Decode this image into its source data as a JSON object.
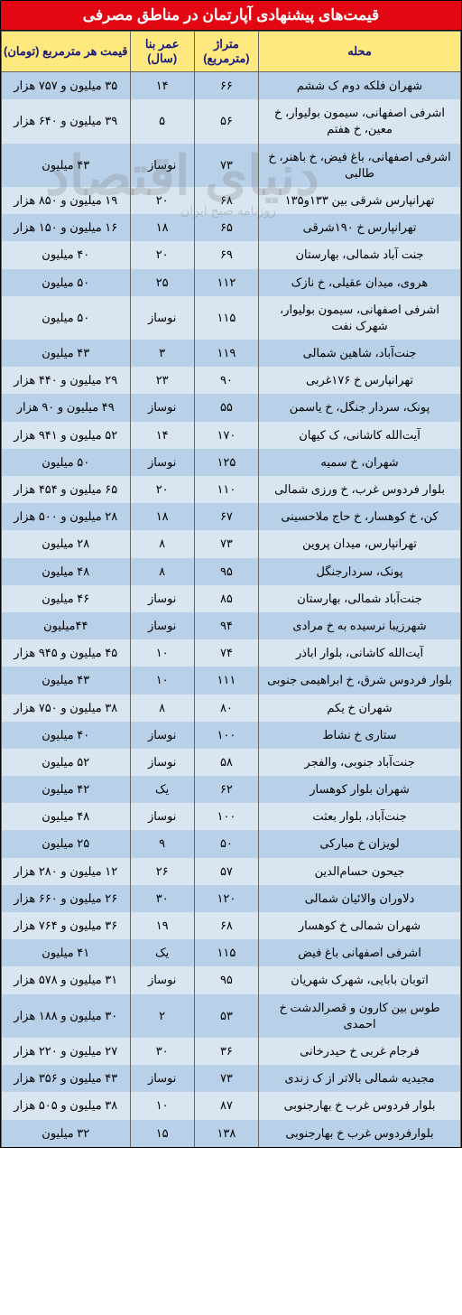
{
  "title": "قیمت‌های پیشنهادی آپارتمان در مناطق مصرفی",
  "watermark": "دنیای اقتصاد",
  "watermark_sub": "روزنامه صبح ایران",
  "headers": {
    "location": "محله",
    "area": "متراژ (مترمربع)",
    "age": "عمر بنا (سال)",
    "price": "قیمت هر مترمربع (تومان)"
  },
  "style": {
    "title_bg": "#e30613",
    "title_color": "#ffffff",
    "header_bg": "#ffe97f",
    "header_color": "#1a1a7a",
    "row_odd_bg": "#b8d0e8",
    "row_even_bg": "#d9e6f2",
    "border_color": "#666666",
    "font_size_body": 13,
    "font_size_title": 17
  },
  "rows": [
    {
      "loc": "شهران فلکه دوم ک ششم",
      "area": "۶۶",
      "age": "۱۴",
      "price": "۳۵ میلیون و ۷۵۷ هزار"
    },
    {
      "loc": "اشرفی اصفهانی، سیمون بولیوار، خ معین، خ هفتم",
      "area": "۵۶",
      "age": "۵",
      "price": "۳۹ میلیون و ۶۴۰ هزار"
    },
    {
      "loc": "اشرفی اصفهانی، باغ فیض، خ باهنر، خ طالبی",
      "area": "۷۳",
      "age": "نوساز",
      "price": "۴۳ میلیون"
    },
    {
      "loc": "تهرانپارس شرقی بین ۱۳۳و۱۳۵",
      "area": "۶۸",
      "age": "۲۰",
      "price": "۱۹ میلیون و ۸۵۰ هزار"
    },
    {
      "loc": "تهرانپارس خ ۱۹۰شرقی",
      "area": "۶۵",
      "age": "۱۸",
      "price": "۱۶ میلیون و ۱۵۰ هزار"
    },
    {
      "loc": "جنت آباد شمالی، بهارستان",
      "area": "۶۹",
      "age": "۲۰",
      "price": "۴۰ میلیون"
    },
    {
      "loc": "هروی، میدان عقیلی، خ نازک",
      "area": "۱۱۲",
      "age": "۲۵",
      "price": "۵۰ میلیون"
    },
    {
      "loc": "اشرفی اصفهانی، سیمون بولیوار، شهرک نفت",
      "area": "۱۱۵",
      "age": "نوساز",
      "price": "۵۰ میلیون"
    },
    {
      "loc": "جنت‌آباد، شاهین شمالی",
      "area": "۱۱۹",
      "age": "۳",
      "price": "۴۳ میلیون"
    },
    {
      "loc": "تهرانپارس خ ۱۷۶غربی",
      "area": "۹۰",
      "age": "۲۳",
      "price": "۲۹ میلیون و ۴۴۰ هزار"
    },
    {
      "loc": "پونک، سردار جنگل، خ یاسمن",
      "area": "۵۵",
      "age": "نوساز",
      "price": "۴۹ میلیون و ۹۰ هزار"
    },
    {
      "loc": "آیت‌الله کاشانی، ک کیهان",
      "area": "۱۷۰",
      "age": "۱۴",
      "price": "۵۲ میلیون و ۹۴۱ هزار"
    },
    {
      "loc": "شهران، خ سمیه",
      "area": "۱۲۵",
      "age": "نوساز",
      "price": "۵۰ میلیون"
    },
    {
      "loc": "بلوار فردوس غرب، خ ورزی شمالی",
      "area": "۱۱۰",
      "age": "۲۰",
      "price": "۶۵ میلیون و ۴۵۴ هزار"
    },
    {
      "loc": "کن، خ کوهسار، خ حاج ملاحسینی",
      "area": "۶۷",
      "age": "۱۸",
      "price": "۲۸ میلیون و ۵۰۰ هزار"
    },
    {
      "loc": "تهرانپارس، میدان پروین",
      "area": "۷۳",
      "age": "۸",
      "price": "۲۸ میلیون"
    },
    {
      "loc": "پونک، سردارجنگل",
      "area": "۹۵",
      "age": "۸",
      "price": "۴۸ میلیون"
    },
    {
      "loc": "جنت‌آباد شمالی، بهارستان",
      "area": "۸۵",
      "age": "نوساز",
      "price": "۴۶ میلیون"
    },
    {
      "loc": "شهرزیبا نرسیده به خ مرادی",
      "area": "۹۴",
      "age": "نوساز",
      "price": "۴۴میلیون"
    },
    {
      "loc": "آیت‌الله کاشانی، بلوار اباذر",
      "area": "۷۴",
      "age": "۱۰",
      "price": "۴۵ میلیون و ۹۴۵ هزار"
    },
    {
      "loc": "بلوار فردوس شرق، خ ابراهیمی جنوبی",
      "area": "۱۱۱",
      "age": "۱۰",
      "price": "۴۳ میلیون"
    },
    {
      "loc": "شهران خ یکم",
      "area": "۸۰",
      "age": "۸",
      "price": "۳۸ میلیون و ۷۵۰ هزار"
    },
    {
      "loc": "ستاری خ نشاط",
      "area": "۱۰۰",
      "age": "نوساز",
      "price": "۴۰ میلیون"
    },
    {
      "loc": "جنت‌آباد جنوبی، والفجر",
      "area": "۵۸",
      "age": "نوساز",
      "price": "۵۲ میلیون"
    },
    {
      "loc": "شهران بلوار کوهسار",
      "area": "۶۲",
      "age": "یک",
      "price": "۴۲ میلیون"
    },
    {
      "loc": "جنت‌آباد، بلوار بعثت",
      "area": "۱۰۰",
      "age": "نوساز",
      "price": "۴۸ میلیون"
    },
    {
      "loc": "لویزان خ مبارکی",
      "area": "۵۰",
      "age": "۹",
      "price": "۲۵ میلیون"
    },
    {
      "loc": "جیحون حسام‌الدین",
      "area": "۵۷",
      "age": "۲۶",
      "price": "۱۲ میلیون و ۲۸۰ هزار"
    },
    {
      "loc": "دلاوران والائیان شمالی",
      "area": "۱۲۰",
      "age": "۳۰",
      "price": "۲۶ میلیون و ۶۶۰ هزار"
    },
    {
      "loc": "شهران شمالی خ کوهسار",
      "area": "۶۸",
      "age": "۱۹",
      "price": "۳۶ میلیون و ۷۶۴ هزار"
    },
    {
      "loc": "اشرفی اصفهانی باغ فیض",
      "area": "۱۱۵",
      "age": "یک",
      "price": "۴۱ میلیون"
    },
    {
      "loc": "اتوبان بابایی، شهرک شهریان",
      "area": "۹۵",
      "age": "نوساز",
      "price": "۳۱ میلیون و ۵۷۸ هزار"
    },
    {
      "loc": "طوس بین کارون و قصرالدشت خ احمدی",
      "area": "۵۳",
      "age": "۲",
      "price": "۳۰ میلیون و ۱۸۸ هزار"
    },
    {
      "loc": "فرجام غربی خ حیدرخانی",
      "area": "۳۶",
      "age": "۳۰",
      "price": "۲۷ میلیون و ۲۲۰ هزار"
    },
    {
      "loc": "مجیدیه شمالی بالاتر از ک زندی",
      "area": "۷۳",
      "age": "نوساز",
      "price": "۴۳ میلیون و ۳۵۶ هزار"
    },
    {
      "loc": "بلوار فردوس غرب خ بهارجنوبی",
      "area": "۸۷",
      "age": "۱۰",
      "price": "۳۸ میلیون و ۵۰۵ هزار"
    },
    {
      "loc": "بلوارفردوس غرب خ بهارجنوبی",
      "area": "۱۳۸",
      "age": "۱۵",
      "price": "۳۲ میلیون"
    }
  ]
}
